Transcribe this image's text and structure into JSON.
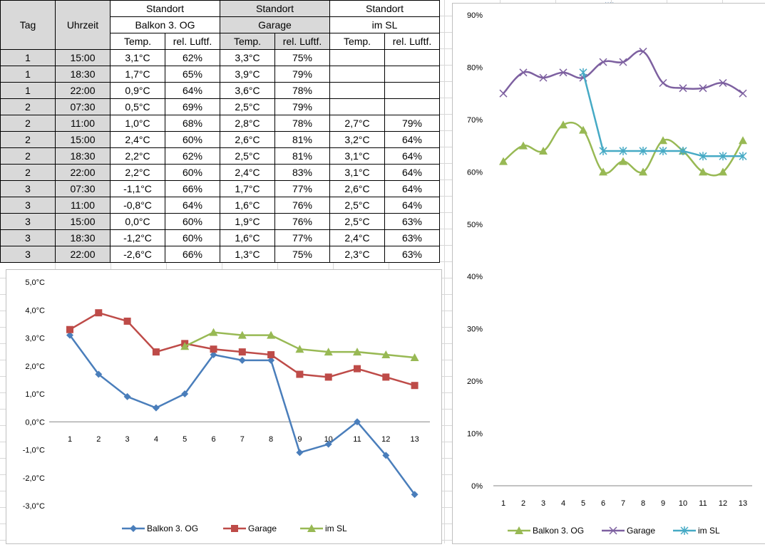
{
  "table": {
    "headers": {
      "tag": "Tag",
      "uhrzeit": "Uhrzeit",
      "standort": [
        "Standort",
        "Standort",
        "Standort"
      ],
      "locations": [
        "Balkon 3. OG",
        "Garage",
        "im SL"
      ],
      "sub": [
        "Temp.",
        "rel. Luftf.",
        "Temp.",
        "rel. Luftf.",
        "Temp.",
        "rel. Luftf."
      ]
    },
    "rows": [
      [
        "1",
        "15:00",
        "3,1°C",
        "62%",
        "3,3°C",
        "75%",
        "",
        ""
      ],
      [
        "1",
        "18:30",
        "1,7°C",
        "65%",
        "3,9°C",
        "79%",
        "",
        ""
      ],
      [
        "1",
        "22:00",
        "0,9°C",
        "64%",
        "3,6°C",
        "78%",
        "",
        ""
      ],
      [
        "2",
        "07:30",
        "0,5°C",
        "69%",
        "2,5°C",
        "79%",
        "",
        ""
      ],
      [
        "2",
        "11:00",
        "1,0°C",
        "68%",
        "2,8°C",
        "78%",
        "2,7°C",
        "79%"
      ],
      [
        "2",
        "15:00",
        "2,4°C",
        "60%",
        "2,6°C",
        "81%",
        "3,2°C",
        "64%"
      ],
      [
        "2",
        "18:30",
        "2,2°C",
        "62%",
        "2,5°C",
        "81%",
        "3,1°C",
        "64%"
      ],
      [
        "2",
        "22:00",
        "2,2°C",
        "60%",
        "2,4°C",
        "83%",
        "3,1°C",
        "64%"
      ],
      [
        "3",
        "07:30",
        "-1,1°C",
        "66%",
        "1,7°C",
        "77%",
        "2,6°C",
        "64%"
      ],
      [
        "3",
        "11:00",
        "-0,8°C",
        "64%",
        "1,6°C",
        "76%",
        "2,5°C",
        "64%"
      ],
      [
        "3",
        "15:00",
        "0,0°C",
        "60%",
        "1,9°C",
        "76%",
        "2,5°C",
        "63%"
      ],
      [
        "3",
        "18:30",
        "-1,2°C",
        "60%",
        "1,6°C",
        "77%",
        "2,4°C",
        "63%"
      ],
      [
        "3",
        "22:00",
        "-2,6°C",
        "66%",
        "1,3°C",
        "75%",
        "2,3°C",
        "63%"
      ]
    ]
  },
  "chart_data": [
    {
      "type": "line",
      "x": [
        "1",
        "2",
        "3",
        "4",
        "5",
        "6",
        "7",
        "8",
        "9",
        "10",
        "11",
        "12",
        "13"
      ],
      "ylim": [
        -3.0,
        5.0
      ],
      "ytick_labels": [
        "5,0°C",
        "4,0°C",
        "3,0°C",
        "2,0°C",
        "1,0°C",
        "0,0°C",
        "-1,0°C",
        "-2,0°C",
        "-3,0°C"
      ],
      "yticks": [
        5,
        4,
        3,
        2,
        1,
        0,
        -1,
        -2,
        -3
      ],
      "grid": false,
      "legend_position": "bottom",
      "series": [
        {
          "name": "Balkon 3. OG",
          "color": "#4a7ebb",
          "marker": "diamond",
          "values": [
            3.1,
            1.7,
            0.9,
            0.5,
            1.0,
            2.4,
            2.2,
            2.2,
            -1.1,
            -0.8,
            0.0,
            -1.2,
            -2.6
          ]
        },
        {
          "name": "Garage",
          "color": "#be4b48",
          "marker": "square",
          "values": [
            3.3,
            3.9,
            3.6,
            2.5,
            2.8,
            2.6,
            2.5,
            2.4,
            1.7,
            1.6,
            1.9,
            1.6,
            1.3
          ]
        },
        {
          "name": "im SL",
          "color": "#98b954",
          "marker": "triangle",
          "values": [
            null,
            null,
            null,
            null,
            2.7,
            3.2,
            3.1,
            3.1,
            2.6,
            2.5,
            2.5,
            2.4,
            2.3
          ]
        }
      ]
    },
    {
      "type": "line",
      "x": [
        "1",
        "2",
        "3",
        "4",
        "5",
        "6",
        "7",
        "8",
        "9",
        "10",
        "11",
        "12",
        "13"
      ],
      "ylim": [
        0,
        90
      ],
      "ytick_labels": [
        "90%",
        "80%",
        "70%",
        "60%",
        "50%",
        "40%",
        "30%",
        "20%",
        "10%",
        "0%"
      ],
      "yticks": [
        90,
        80,
        70,
        60,
        50,
        40,
        30,
        20,
        10,
        0
      ],
      "grid": false,
      "legend_position": "bottom",
      "series": [
        {
          "name": "Balkon 3. OG",
          "color": "#98b954",
          "marker": "triangle",
          "smooth": true,
          "values": [
            62,
            65,
            64,
            69,
            68,
            60,
            62,
            60,
            66,
            64,
            60,
            60,
            66
          ]
        },
        {
          "name": "Garage",
          "color": "#7d60a0",
          "marker": "x",
          "smooth": true,
          "values": [
            75,
            79,
            78,
            79,
            78,
            81,
            81,
            83,
            77,
            76,
            76,
            77,
            75
          ]
        },
        {
          "name": "im SL",
          "color": "#46aac5",
          "marker": "star",
          "smooth": false,
          "values": [
            null,
            null,
            null,
            null,
            79,
            64,
            64,
            64,
            64,
            64,
            63,
            63,
            63
          ]
        }
      ]
    }
  ]
}
